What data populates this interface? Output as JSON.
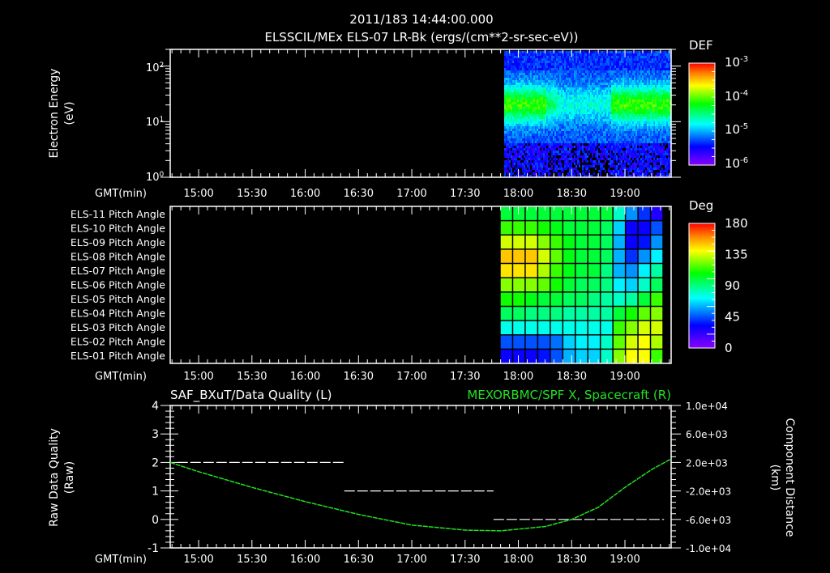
{
  "header": {
    "timestamp": "2011/183 14:44:00.000",
    "title": "ELSSCIL/MEx ELS-07 LR-Bk  (ergs/(cm**2-sr-sec-eV))"
  },
  "colors": {
    "background": "#000000",
    "axis": "#ffffff",
    "spacecraft_line": "#22e022",
    "quality_line": "#ffffff"
  },
  "chart_data": [
    {
      "type": "heatmap",
      "name": "energy-spectrogram",
      "title": "ELSSCIL/MEx ELS-07 LR-Bk  (ergs/(cm**2-sr-sec-eV))",
      "xlabel": "GMT(min)",
      "ylabel": "Electron Energy (eV)",
      "yscale": "log",
      "ylim": [
        1,
        200
      ],
      "yticks": [
        "10^0",
        "10^1",
        "10^2"
      ],
      "xticks": [
        "15:00",
        "15:30",
        "16:00",
        "16:30",
        "17:00",
        "17:30",
        "18:00",
        "18:30",
        "19:00"
      ],
      "xrange": [
        "14:44",
        "19:26"
      ],
      "data_start": "17:52",
      "colorbar": {
        "label": "DEF",
        "scale": "log",
        "ticks": [
          "10^-3",
          "10^-4",
          "10^-5",
          "10^-6"
        ],
        "range": [
          1e-06,
          0.001
        ]
      },
      "description": "Green band (~1e-4) at 5-20 eV from 17:52 to ~18:25, weakening 18:25-18:50, reappearing 18:55-19:25; low energies sparse/black around 18:20-18:50"
    },
    {
      "type": "heatmap",
      "name": "pitch-angle",
      "xlabel": "GMT(min)",
      "rows": [
        "ELS-11 Pitch Angle",
        "ELS-10 Pitch Angle",
        "ELS-09 Pitch Angle",
        "ELS-08 Pitch Angle",
        "ELS-07 Pitch Angle",
        "ELS-06 Pitch Angle",
        "ELS-05 Pitch Angle",
        "ELS-04 Pitch Angle",
        "ELS-03 Pitch Angle",
        "ELS-02 Pitch Angle",
        "ELS-01 Pitch Angle"
      ],
      "xticks": [
        "15:00",
        "15:30",
        "16:00",
        "16:30",
        "17:00",
        "17:30",
        "18:00",
        "18:30",
        "19:00"
      ],
      "colorbar": {
        "label": "Deg",
        "ticks": [
          "180",
          "135",
          "90",
          "45",
          "0"
        ],
        "range": [
          0,
          180
        ]
      },
      "columns": 13,
      "values": [
        [
          100,
          100,
          100,
          100,
          100,
          100,
          100,
          100,
          100,
          80,
          55,
          40,
          25
        ],
        [
          115,
          115,
          115,
          110,
          105,
          100,
          100,
          100,
          95,
          65,
          30,
          30,
          45
        ],
        [
          135,
          135,
          135,
          125,
          115,
          105,
          100,
          100,
          95,
          60,
          30,
          35,
          55
        ],
        [
          150,
          150,
          150,
          135,
          120,
          105,
          100,
          100,
          95,
          60,
          40,
          55,
          70
        ],
        [
          145,
          145,
          145,
          130,
          115,
          105,
          100,
          100,
          90,
          60,
          55,
          70,
          85
        ],
        [
          125,
          125,
          125,
          120,
          110,
          100,
          95,
          95,
          90,
          70,
          65,
          80,
          95
        ],
        [
          110,
          110,
          105,
          100,
          100,
          95,
          95,
          90,
          85,
          80,
          85,
          100,
          115
        ],
        [
          95,
          95,
          90,
          90,
          90,
          85,
          85,
          85,
          85,
          100,
          110,
          120,
          125
        ],
        [
          75,
          75,
          75,
          75,
          75,
          75,
          75,
          75,
          75,
          115,
          125,
          135,
          135
        ],
        [
          45,
          45,
          45,
          45,
          50,
          65,
          70,
          70,
          80,
          120,
          135,
          140,
          130
        ],
        [
          30,
          30,
          30,
          35,
          45,
          60,
          65,
          65,
          80,
          125,
          140,
          140,
          115
        ]
      ]
    },
    {
      "type": "line",
      "name": "data-quality-and-position",
      "title_left": "SAF_BXuT/Data Quality (L)",
      "title_right": "MEXORBMC/SPF X, Spacecraft (R)",
      "xlabel": "GMT(min)",
      "ylabel": "Raw Data Quality (Raw)",
      "ylabel_right": "Component Distance (km)",
      "ylim": [
        -1,
        4
      ],
      "yticks": [
        "4",
        "3",
        "2",
        "1",
        "0",
        "-1"
      ],
      "ylim_right": [
        -10000,
        10000
      ],
      "yticks_right": [
        "1.0e+04",
        "6.0e+03",
        "2.0e+03",
        "-2.0e+03",
        "-6.0e+03",
        "-1.0e+04"
      ],
      "xticks": [
        "15:00",
        "15:30",
        "16:00",
        "16:30",
        "17:00",
        "17:30",
        "18:00",
        "18:30",
        "19:00"
      ],
      "series": [
        {
          "name": "Data Quality (L)",
          "color": "#ffffff",
          "style": "dashed-steps",
          "points": [
            [
              "14:48",
              2.0
            ],
            [
              "16:22",
              2.0
            ],
            [
              "16:22",
              1.0
            ],
            [
              "17:46",
              1.0
            ],
            [
              "17:46",
              0.0
            ],
            [
              "19:22",
              0.0
            ]
          ]
        },
        {
          "name": "SPF X, Spacecraft (R)",
          "color": "#22e022",
          "x": [
            "14:44",
            "15:00",
            "15:30",
            "16:00",
            "16:30",
            "17:00",
            "17:30",
            "17:50",
            "18:15",
            "18:30",
            "18:45",
            "19:00",
            "19:15",
            "19:26"
          ],
          "values": [
            2000,
            700,
            -1500,
            -3500,
            -5300,
            -6800,
            -7500,
            -7600,
            -7000,
            -6000,
            -4300,
            -1500,
            1000,
            2500
          ]
        }
      ]
    }
  ]
}
